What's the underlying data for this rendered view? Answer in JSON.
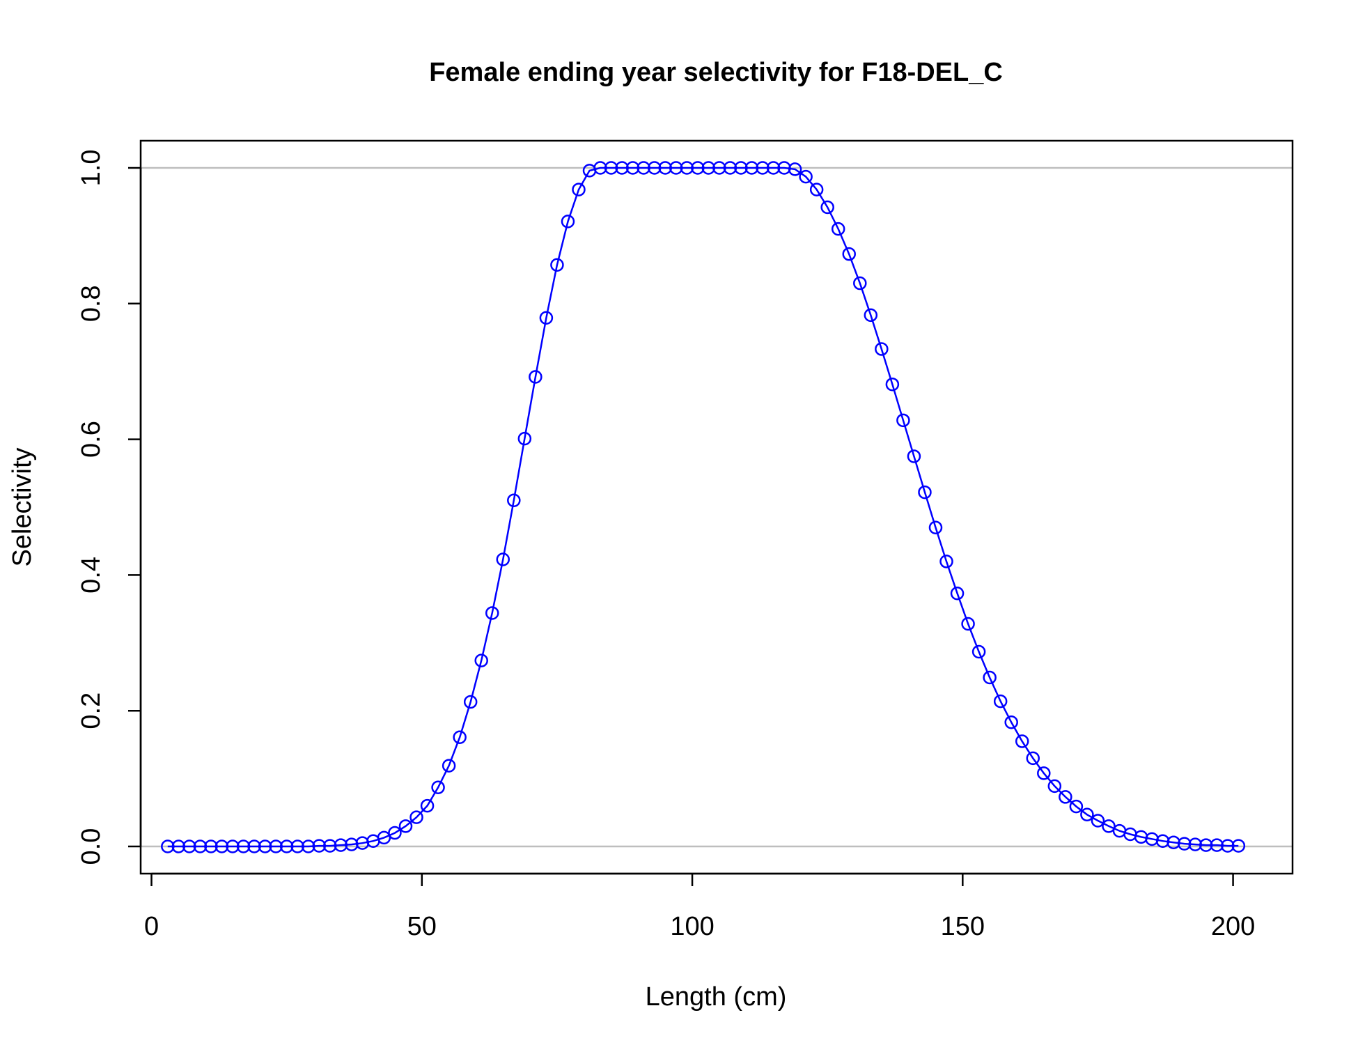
{
  "chart_data": {
    "type": "line",
    "title": "Female ending year selectivity for F18-DEL_C",
    "xlabel": "Length (cm)",
    "ylabel": "Selectivity",
    "xlim": [
      -2,
      211
    ],
    "ylim": [
      -0.04,
      1.04
    ],
    "x_ticks": [
      0,
      50,
      100,
      150,
      200
    ],
    "y_ticks": [
      0.0,
      0.2,
      0.4,
      0.6,
      0.8,
      1.0
    ],
    "x_tick_labels": [
      "0",
      "50",
      "100",
      "150",
      "200"
    ],
    "y_tick_labels": [
      "0.0",
      "0.2",
      "0.4",
      "0.6",
      "0.8",
      "1.0"
    ],
    "reference_lines_y": [
      0,
      1
    ],
    "reference_line_color": "#bebebe",
    "series_color": "#0000ff",
    "marker": "open-circle",
    "grid": false,
    "series": [
      {
        "x": [
          3,
          5,
          7,
          9,
          11,
          13,
          15,
          17,
          19,
          21,
          23,
          25,
          27,
          29,
          31,
          33,
          35,
          37,
          39,
          41,
          43,
          45,
          47,
          49,
          51,
          53,
          55,
          57,
          59,
          61,
          63,
          65,
          67,
          69,
          71,
          73,
          75,
          77,
          79,
          81,
          83,
          85,
          87,
          89,
          91,
          93,
          95,
          97,
          99,
          101,
          103,
          105,
          107,
          109,
          111,
          113,
          115,
          117,
          119,
          121,
          123,
          125,
          127,
          129,
          131,
          133,
          135,
          137,
          139,
          141,
          143,
          145,
          147,
          149,
          151,
          153,
          155,
          157,
          159,
          161,
          163,
          165,
          167,
          169,
          171,
          173,
          175,
          177,
          179,
          181,
          183,
          185,
          187,
          189,
          191,
          193,
          195,
          197,
          199,
          201
        ],
        "values": [
          0,
          0,
          0,
          0,
          0,
          0,
          0,
          0,
          0,
          0,
          0,
          0,
          0,
          0,
          0.001,
          0.001,
          0.002,
          0.003,
          0.005,
          0.008,
          0.013,
          0.02,
          0.03,
          0.043,
          0.06,
          0.087,
          0.119,
          0.161,
          0.213,
          0.274,
          0.344,
          0.423,
          0.51,
          0.601,
          0.692,
          0.779,
          0.857,
          0.921,
          0.968,
          0.996,
          1,
          1,
          1,
          1,
          1,
          1,
          1,
          1,
          1,
          1,
          1,
          1,
          1,
          1,
          1,
          1,
          1,
          1,
          0.998,
          0.987,
          0.968,
          0.942,
          0.91,
          0.873,
          0.83,
          0.783,
          0.733,
          0.681,
          0.628,
          0.575,
          0.522,
          0.47,
          0.42,
          0.373,
          0.328,
          0.287,
          0.249,
          0.214,
          0.183,
          0.155,
          0.13,
          0.108,
          0.089,
          0.073,
          0.059,
          0.047,
          0.038,
          0.03,
          0.023,
          0.018,
          0.014,
          0.011,
          0.008,
          0.006,
          0.004,
          0.003,
          0.002,
          0.002,
          0.001,
          0.001
        ]
      }
    ]
  }
}
